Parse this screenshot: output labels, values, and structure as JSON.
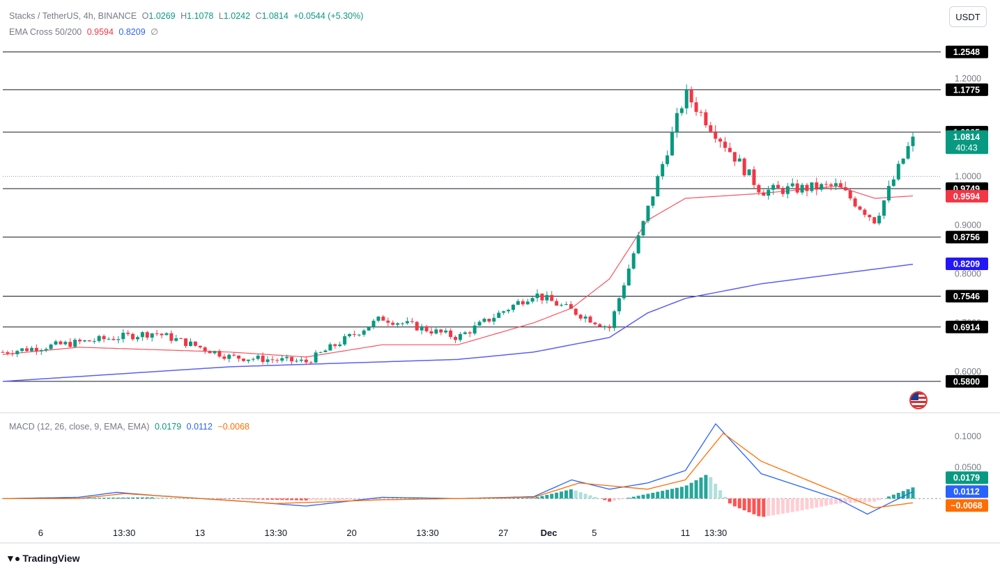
{
  "header": {
    "symbol": "Stacks / TetherUS, 4h, BINANCE",
    "o_label": "O",
    "o": "1.0269",
    "h_label": "H",
    "h": "1.1078",
    "l_label": "L",
    "l": "1.0242",
    "c_label": "C",
    "c": "1.0814",
    "change": "+0.0544 (+5.30%)",
    "currency_button": "USDT"
  },
  "ema_legend": {
    "label": "EMA Cross 50/200",
    "ema50": "0.9594",
    "ema200": "0.8209",
    "symbol": "∅"
  },
  "macd_legend": {
    "label": "MACD (12, 26, close, 9, EMA, EMA)",
    "hist": "0.0179",
    "macd": "0.0112",
    "signal": "−0.0068"
  },
  "footer": {
    "brand": "TradingView",
    "logo_icon": "tradingview-logo-icon"
  },
  "colors": {
    "up": "#089981",
    "down": "#f23645",
    "ema50": "#f7525f",
    "ema200": "#5b5ef5",
    "macd": "#2962ff",
    "signal": "#ff6d00"
  },
  "chart_data": {
    "type": "candlestick",
    "price_axis": {
      "ticks": [
        0.6,
        0.7,
        0.8,
        0.9,
        1.0,
        1.2
      ],
      "tick_labels": [
        "0.6000",
        "0.7000",
        "0.8000",
        "0.9000",
        "1.0000",
        "1.2000"
      ],
      "range": [
        0.52,
        1.29
      ]
    },
    "levels": [
      {
        "value": 1.2548,
        "label": "1.2548"
      },
      {
        "value": 1.1775,
        "label": "1.1775"
      },
      {
        "value": 1.0905,
        "label": "1.0905"
      },
      {
        "value": 0.9749,
        "label": "0.9749"
      },
      {
        "value": 0.8756,
        "label": "0.8756"
      },
      {
        "value": 0.7546,
        "label": "0.7546"
      },
      {
        "value": 0.6914,
        "label": "0.6914"
      },
      {
        "value": 0.58,
        "label": "0.5800"
      }
    ],
    "dotted_level": 1.0,
    "current_price": {
      "value": 1.0814,
      "label": "1.0814",
      "countdown": "40:43"
    },
    "ema50_badge": {
      "value": 0.9594,
      "label": "0.9594"
    },
    "ema200_badge": {
      "value": 0.8209,
      "label": "0.8209"
    },
    "x_labels": [
      "6",
      "13:30",
      "13",
      "13:30",
      "20",
      "13:30",
      "27",
      "Dec",
      "5",
      "11",
      "13:30"
    ],
    "x_label_bars": [
      0.5,
      1.6,
      2.6,
      3.6,
      4.6,
      5.6,
      6.6,
      7.2,
      7.8,
      9.0,
      9.4
    ],
    "close_path": [
      [
        0,
        0.64
      ],
      [
        1,
        0.66
      ],
      [
        2,
        0.68
      ],
      [
        3,
        0.63
      ],
      [
        4,
        0.62
      ],
      [
        5,
        0.71
      ],
      [
        6,
        0.67
      ],
      [
        7,
        0.76
      ],
      [
        8,
        0.69
      ],
      [
        9,
        1.17
      ],
      [
        10,
        0.97
      ],
      [
        11,
        0.98
      ],
      [
        11.5,
        0.91
      ],
      [
        12,
        1.08
      ]
    ],
    "ema50_path": [
      [
        0,
        0.635
      ],
      [
        1,
        0.65
      ],
      [
        2,
        0.645
      ],
      [
        3,
        0.64
      ],
      [
        4,
        0.63
      ],
      [
        5,
        0.655
      ],
      [
        6,
        0.655
      ],
      [
        7,
        0.7
      ],
      [
        7.5,
        0.73
      ],
      [
        8,
        0.79
      ],
      [
        8.5,
        0.91
      ],
      [
        9,
        0.955
      ],
      [
        10,
        0.965
      ],
      [
        11,
        0.98
      ],
      [
        11.5,
        0.955
      ],
      [
        12,
        0.96
      ]
    ],
    "ema200_path": [
      [
        0,
        0.58
      ],
      [
        1,
        0.59
      ],
      [
        2,
        0.6
      ],
      [
        3,
        0.61
      ],
      [
        4,
        0.615
      ],
      [
        5,
        0.62
      ],
      [
        6,
        0.625
      ],
      [
        7,
        0.64
      ],
      [
        8,
        0.67
      ],
      [
        8.5,
        0.72
      ],
      [
        9,
        0.75
      ],
      [
        10,
        0.78
      ],
      [
        11,
        0.8
      ],
      [
        12,
        0.82
      ]
    ],
    "macd": {
      "axis_ticks": [
        0.05,
        0.1
      ],
      "axis_labels": [
        "0.0500",
        "0.1000"
      ],
      "range": [
        -0.04,
        0.13
      ],
      "macd_path": [
        [
          0,
          0.0
        ],
        [
          1,
          0.002
        ],
        [
          1.5,
          0.01
        ],
        [
          2,
          0.005
        ],
        [
          3,
          -0.003
        ],
        [
          4,
          -0.012
        ],
        [
          5,
          0.002
        ],
        [
          6,
          0.0
        ],
        [
          7,
          0.003
        ],
        [
          7.5,
          0.03
        ],
        [
          8,
          0.015
        ],
        [
          8.5,
          0.025
        ],
        [
          9,
          0.045
        ],
        [
          9.4,
          0.12
        ],
        [
          10,
          0.04
        ],
        [
          11,
          0.0
        ],
        [
          11.4,
          -0.025
        ],
        [
          12,
          0.0112
        ]
      ],
      "signal_path": [
        [
          0,
          0.0
        ],
        [
          1,
          0.0
        ],
        [
          1.6,
          0.008
        ],
        [
          2.6,
          0.0
        ],
        [
          3.6,
          -0.008
        ],
        [
          5,
          -0.002
        ],
        [
          6,
          0.0
        ],
        [
          7,
          0.002
        ],
        [
          7.6,
          0.025
        ],
        [
          8.5,
          0.015
        ],
        [
          9,
          0.03
        ],
        [
          9.5,
          0.105
        ],
        [
          10,
          0.06
        ],
        [
          11,
          0.01
        ],
        [
          11.5,
          -0.015
        ],
        [
          12,
          -0.0068
        ]
      ],
      "hist_path": [
        [
          0,
          0.0
        ],
        [
          2,
          0.002
        ],
        [
          4,
          -0.003
        ],
        [
          7,
          0.001
        ],
        [
          7.5,
          0.015
        ],
        [
          8,
          -0.005
        ],
        [
          9,
          0.02
        ],
        [
          9.3,
          0.04
        ],
        [
          9.6,
          -0.01
        ],
        [
          10,
          -0.03
        ],
        [
          10.5,
          -0.02
        ],
        [
          11,
          -0.008
        ],
        [
          11.5,
          -0.005
        ],
        [
          12,
          0.0179
        ]
      ]
    }
  }
}
